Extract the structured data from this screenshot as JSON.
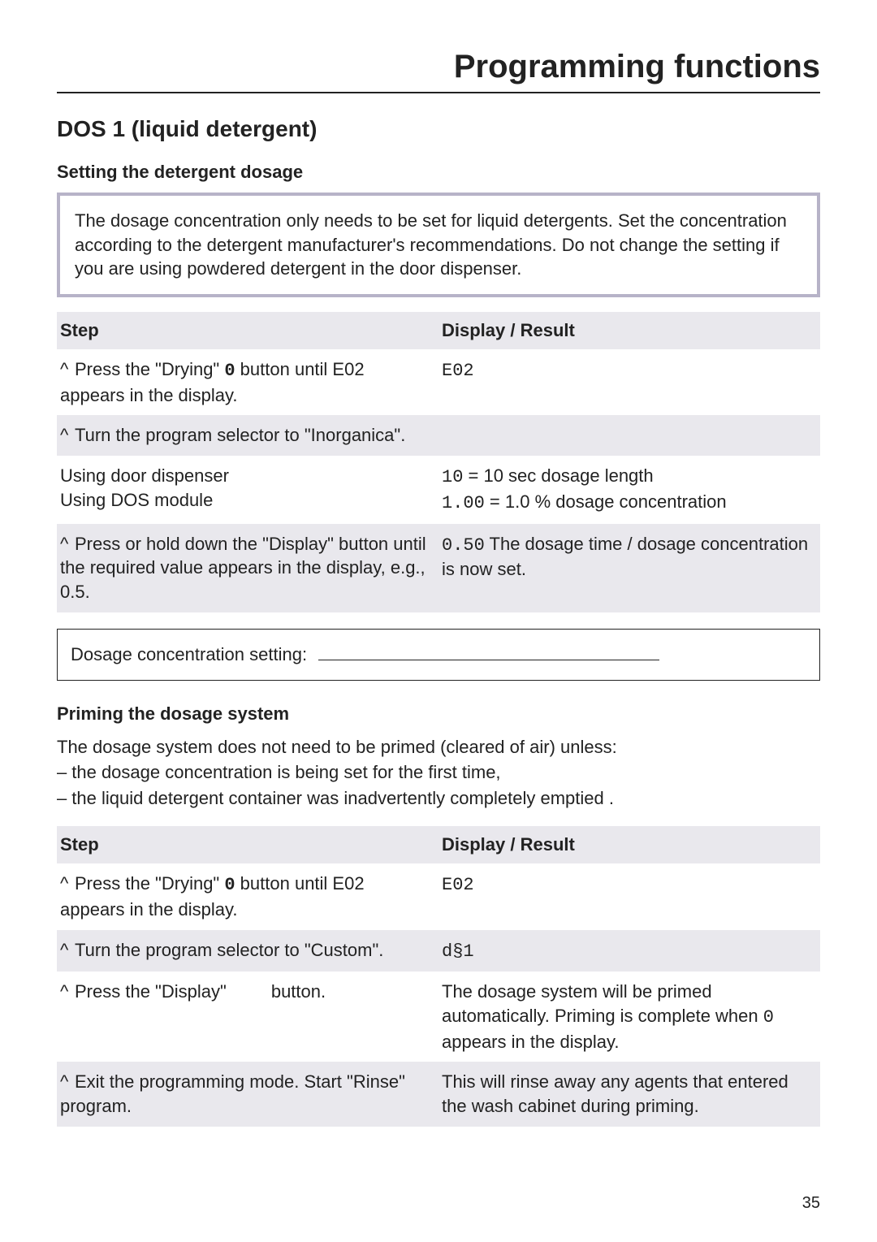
{
  "header": {
    "title": "Programming functions"
  },
  "section": {
    "heading": "DOS 1 (liquid detergent)"
  },
  "dosage": {
    "subheading": "Setting the detergent dosage",
    "info_text": "The dosage concentration only needs to be set for liquid detergents. Set the concentration according to the detergent manufacturer's recommendations. Do not change the setting if you are using powdered detergent in the door dispenser.",
    "table": {
      "col_step": "Step",
      "col_result": "Display / Result",
      "rows": [
        {
          "step_prefix": "^ ",
          "step_a": "Press the \"Drying\" ",
          "step_sym": "0",
          "step_b": " button until E02 appears in the display.",
          "result_code": "E02",
          "result_rest": ""
        },
        {
          "step_prefix": "^ ",
          "step_a": "Turn the program selector to \"Inorganica\".",
          "step_sym": "",
          "step_b": "",
          "result_code": "",
          "result_rest": ""
        },
        {
          "step_prefix": "",
          "step_a": "Using door dispenser",
          "step_sym": "",
          "step_b": "",
          "step_line2": "Using DOS module",
          "result_code": "10",
          "result_rest": " = 10 sec dosage length",
          "result_code2": "1.00",
          "result_rest2": " = 1.0 % dosage concentration"
        },
        {
          "step_prefix": "^ ",
          "step_a": "Press or hold down the \"Display\" button until the required value appears in the display, e.g., 0.5.",
          "step_sym": "",
          "step_b": "",
          "result_code": "0.50",
          "result_rest": " The dosage time / dosage concentration is now set."
        }
      ]
    },
    "fillin_label": "Dosage concentration setting:"
  },
  "priming": {
    "subheading": "Priming the dosage system",
    "intro": "The dosage system does not need to be primed (cleared of air) unless:",
    "bullet1": "the dosage concentration is being set for the first time,",
    "bullet2": "the liquid detergent container was inadvertently completely emptied .",
    "table": {
      "col_step": "Step",
      "col_result": "Display / Result",
      "rows": [
        {
          "step_prefix": "^ ",
          "step_a": "Press the \"Drying\" ",
          "step_sym": "0",
          "step_b": " button until E02 appears in the display.",
          "result_code": "E02",
          "result_rest": ""
        },
        {
          "step_prefix": "^ ",
          "step_a": "Turn the program selector to \"Custom\".",
          "step_sym": "",
          "step_b": "",
          "result_code": "d§1",
          "result_rest": ""
        },
        {
          "step_prefix": "^ ",
          "step_a": "Press the \"Display\" ",
          "step_sym": "",
          "step_gap": "        ",
          "step_b": "button.",
          "result_code": "",
          "result_rest_a": "The dosage system will be primed automatically. Priming is complete when ",
          "result_inline_code": "0",
          "result_rest_b": " appears in the display."
        },
        {
          "step_prefix": "^ ",
          "step_a": "Exit the programming mode. Start \"Rinse\" program.",
          "step_sym": "",
          "step_b": "",
          "result_code": "",
          "result_rest": "This will rinse away any agents that entered the wash cabinet during priming."
        }
      ]
    }
  },
  "page_number": "35"
}
